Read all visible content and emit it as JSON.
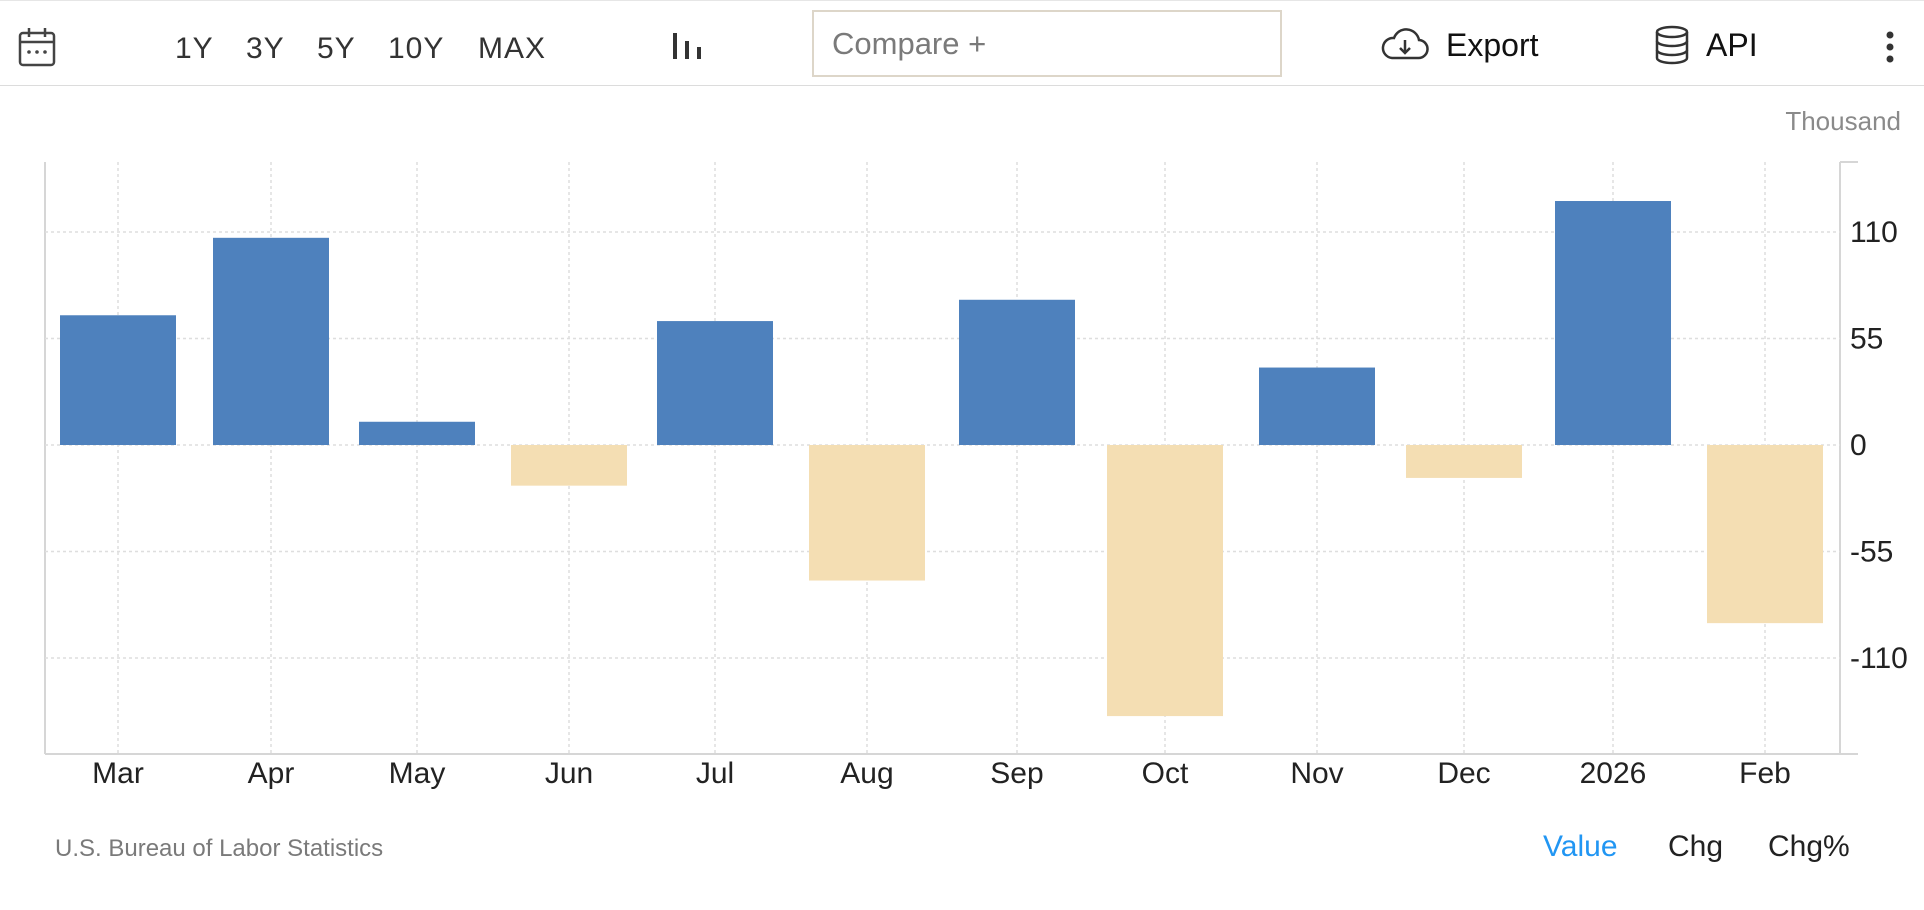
{
  "toolbar": {
    "calendar_icon": "calendar-icon",
    "ranges": [
      "1Y",
      "3Y",
      "5Y",
      "10Y",
      "MAX"
    ],
    "chart_type_icon": "bar-chart-icon",
    "compare_placeholder": "Compare +",
    "export_label": "Export",
    "api_label": "API",
    "export_icon": "cloud-download-icon",
    "api_icon": "database-icon",
    "menu_icon": "more-vertical-icon"
  },
  "unit_label": "Thousand",
  "source": "U.S. Bureau of Labor Statistics",
  "modes": [
    "Value",
    "Chg",
    "Chg%"
  ],
  "colors": {
    "positive": "#4e81bd",
    "negative": "#f4deb3",
    "active_mode": "#2196f3"
  },
  "chart_data": {
    "type": "bar",
    "categories": [
      "Mar",
      "Apr",
      "May",
      "Jun",
      "Jul",
      "Aug",
      "Sep",
      "Oct",
      "Nov",
      "Dec",
      "2026",
      "Feb"
    ],
    "values": [
      67,
      107,
      12,
      -21,
      64,
      -70,
      75,
      -140,
      40,
      -17,
      126,
      -92
    ],
    "yticks": [
      110,
      55,
      0,
      -55,
      -110
    ],
    "ylim": [
      -160,
      146
    ],
    "grid": true,
    "yaxis_side": "right"
  }
}
